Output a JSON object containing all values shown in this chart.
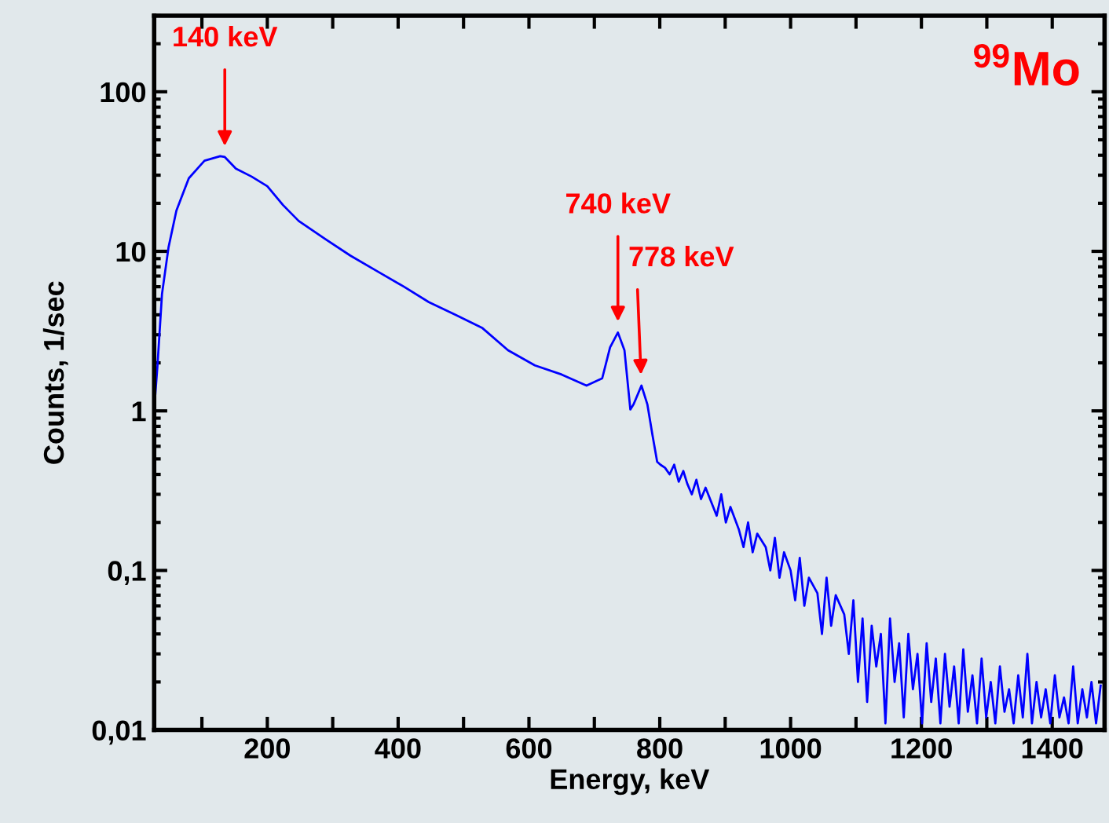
{
  "chart_data": {
    "type": "line",
    "xlabel": "Energy, keV",
    "ylabel": "Counts, 1/sec",
    "log": "y",
    "grid": false,
    "marker": "none",
    "line_style": "solid",
    "xlim": [
      27,
      1480
    ],
    "ylim": [
      0.01,
      300
    ],
    "xticks": [
      {
        "value": 100,
        "label": null
      },
      200,
      {
        "value": 300,
        "label": null
      },
      400,
      {
        "value": 500,
        "label": null
      },
      600,
      {
        "value": 700,
        "label": null
      },
      800,
      {
        "value": 900,
        "label": null
      },
      1000,
      {
        "value": 1100,
        "label": null
      },
      1200,
      {
        "value": 1300,
        "label": null
      },
      1400
    ],
    "yticks": [
      {
        "value": 0.01,
        "label": "0,01"
      },
      {
        "value": 0.1,
        "label": "0,1"
      },
      1,
      10,
      100
    ],
    "series": [
      {
        "color": "#0000ff",
        "x": [
          27,
          32,
          39,
          49,
          61,
          80,
          104,
          128,
          135,
          152,
          176,
          200,
          224,
          248,
          289,
          327,
          368,
          409,
          447,
          488,
          529,
          568,
          609,
          650,
          688,
          712,
          724,
          736,
          746,
          755,
          760,
          772,
          781,
          789,
          796,
          801,
          808,
          815,
          822,
          829,
          836,
          842,
          849,
          856,
          863,
          870,
          880,
          887,
          894,
          901,
          908,
          921,
          928,
          935,
          942,
          949,
          962,
          969,
          976,
          983,
          990,
          1000,
          1007,
          1014,
          1021,
          1028,
          1041,
          1048,
          1055,
          1062,
          1069,
          1082,
          1089,
          1096,
          1103,
          1110,
          1117,
          1124,
          1131,
          1138,
          1145,
          1152,
          1159,
          1166,
          1173,
          1180,
          1187,
          1194,
          1201,
          1208,
          1215,
          1222,
          1229,
          1236,
          1243,
          1250,
          1257,
          1264,
          1271,
          1278,
          1285,
          1292,
          1299,
          1306,
          1313,
          1320,
          1327,
          1334,
          1341,
          1348,
          1355,
          1362,
          1369,
          1376,
          1383,
          1390,
          1397,
          1404,
          1411,
          1418,
          1425,
          1432,
          1439,
          1446,
          1453,
          1460,
          1467,
          1474
        ],
        "values": [
          1.02,
          1.9,
          5.4,
          10.6,
          18,
          28.7,
          37,
          39.5,
          39,
          33,
          29.4,
          25.6,
          19.5,
          15.5,
          11.9,
          9.4,
          7.5,
          6.0,
          4.8,
          4.0,
          3.3,
          2.4,
          1.93,
          1.69,
          1.44,
          1.6,
          2.5,
          3.1,
          2.4,
          1.02,
          1.1,
          1.44,
          1.1,
          0.7,
          0.48,
          0.46,
          0.44,
          0.4,
          0.46,
          0.36,
          0.42,
          0.35,
          0.3,
          0.37,
          0.28,
          0.33,
          0.26,
          0.22,
          0.3,
          0.2,
          0.25,
          0.18,
          0.14,
          0.2,
          0.13,
          0.17,
          0.14,
          0.1,
          0.16,
          0.09,
          0.13,
          0.1,
          0.065,
          0.12,
          0.06,
          0.09,
          0.072,
          0.04,
          0.09,
          0.045,
          0.07,
          0.053,
          0.03,
          0.065,
          0.02,
          0.05,
          0.015,
          0.045,
          0.025,
          0.04,
          0.011,
          0.05,
          0.02,
          0.035,
          0.012,
          0.04,
          0.018,
          0.03,
          0.011,
          0.035,
          0.015,
          0.028,
          0.011,
          0.03,
          0.014,
          0.025,
          0.011,
          0.032,
          0.013,
          0.022,
          0.011,
          0.028,
          0.012,
          0.02,
          0.011,
          0.025,
          0.013,
          0.018,
          0.011,
          0.022,
          0.012,
          0.03,
          0.011,
          0.02,
          0.012,
          0.018,
          0.011,
          0.022,
          0.012,
          0.016,
          0.011,
          0.025,
          0.011,
          0.018,
          0.012,
          0.02,
          0.011,
          0.019
        ]
      }
    ],
    "annotations": [
      {
        "text": "140 keV",
        "x": 135,
        "y": 39
      },
      {
        "text": "740 keV",
        "x": 736,
        "y": 3.1
      },
      {
        "text": "778 keV",
        "x": 772,
        "y": 1.44
      },
      "$^{99}$Mo"
    ]
  }
}
